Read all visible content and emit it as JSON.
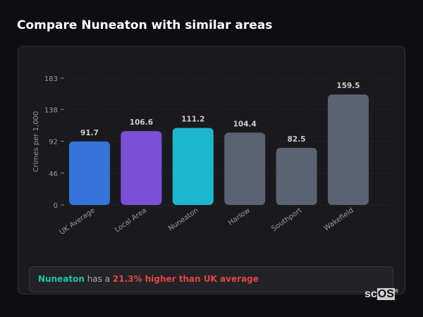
{
  "title": "Compare Nuneaton with similar areas",
  "chart_data": {
    "type": "bar",
    "title": "",
    "ylabel": "Crimes per 1,000",
    "xlabel": "",
    "ylim": [
      0,
      183
    ],
    "yticks": [
      0,
      46,
      92,
      138,
      183
    ],
    "grid": true,
    "categories": [
      "UK Average",
      "Local Area",
      "Nuneaton",
      "Harlow",
      "Southport",
      "Wakefield"
    ],
    "values": [
      91.7,
      106.6,
      111.2,
      104.4,
      82.5,
      159.5
    ],
    "value_labels": [
      "91.7",
      "106.6",
      "111.2",
      "104.4",
      "82.5",
      "159.5"
    ],
    "colors": [
      "#3574d8",
      "#7b50d6",
      "#1eb6cf",
      "#5a6273",
      "#5a6273",
      "#5a6273"
    ]
  },
  "summary": {
    "area": "Nuneaton",
    "middle": " has a ",
    "stat": "21.3% higher than UK average"
  },
  "logo": {
    "text": "scOS"
  }
}
